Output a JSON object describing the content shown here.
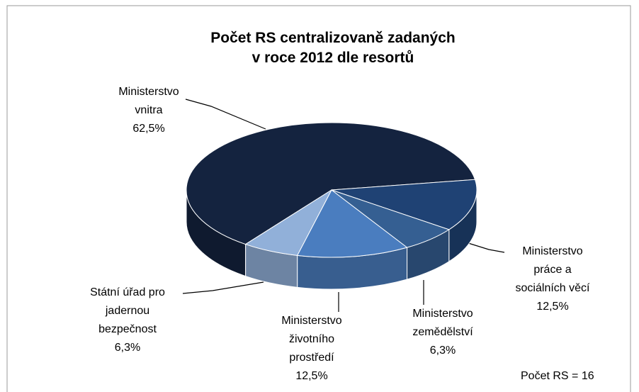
{
  "chart_data": {
    "type": "pie",
    "title": "Počet RS centralizovaně zadaných\nv roce 2012 dle resortů",
    "categories": [
      "Ministerstvo\nvnitra",
      "Ministerstvo\npráce a\nsociálních věcí",
      "Ministerstvo\nzemědělství",
      "Ministerstvo\nživotního\nprostředí",
      "Státní úřad pro\njadernou\nbezpečnost"
    ],
    "values": [
      62.5,
      12.5,
      6.3,
      12.5,
      6.3
    ],
    "value_labels": [
      "62,5%",
      "12,5%",
      "6,3%",
      "12,5%",
      "6,3%"
    ],
    "colors": [
      "#14233f",
      "#1f4274",
      "#355f92",
      "#4a7dbf",
      "#91b0d9"
    ],
    "annotation": "Počet RS = 16"
  }
}
